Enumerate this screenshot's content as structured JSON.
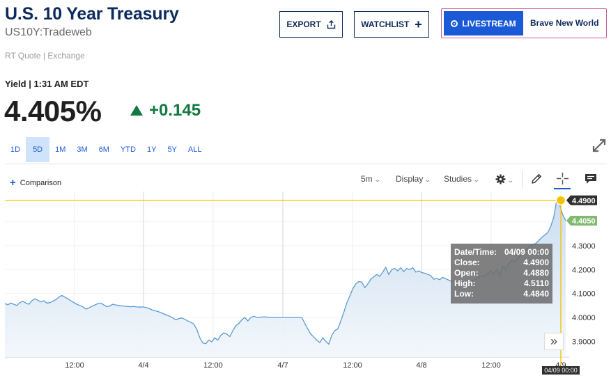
{
  "header": {
    "title": "U.S. 10 Year Treasury",
    "symbol": "US10Y:Tradeweb",
    "quote_source": "RT Quote | Exchange",
    "export_label": "EXPORT",
    "watchlist_label": "WATCHLIST",
    "livestream_label": "LIVESTREAM",
    "livestream_show": "Brave New World"
  },
  "quote": {
    "yield_label": "Yield | 1:31 AM EDT",
    "last": "4.405%",
    "change": "+0.145"
  },
  "ranges": [
    "1D",
    "5D",
    "1M",
    "3M",
    "6M",
    "YTD",
    "1Y",
    "5Y",
    "ALL"
  ],
  "active_range": "5D",
  "toolbar": {
    "comparison_label": "Comparison",
    "interval_label": "5m",
    "display_label": "Display",
    "studies_label": "Studies"
  },
  "tooltip": {
    "datetime_label": "Date/Time:",
    "datetime_value": "04/09 00:00",
    "close_label": "Close:",
    "close_value": "4.4900",
    "open_label": "Open:",
    "open_value": "4.4880",
    "high_label": "High:",
    "high_value": "4.5110",
    "low_label": "Low:",
    "low_value": "4.4840"
  },
  "colors": {
    "brand": "#0c2a5b",
    "accent": "#1a5ad6",
    "up": "#0f7a3f",
    "line": "#5b9bd1",
    "crosshair": "#f5c400"
  },
  "chart_data": {
    "type": "area",
    "x_tick_labels": [
      "12:00",
      "4/4",
      "12:00",
      "4/7",
      "12:00",
      "4/8",
      "12:00",
      "4/9"
    ],
    "y_tick_labels": [
      "4.3000",
      "4.2000",
      "4.1000",
      "4.0000",
      "3.9000"
    ],
    "ylim": [
      3.84,
      4.52
    ],
    "crosshair_value": "4.4900",
    "last_value": "4.4050",
    "crosshair_time": "04/09 00:00",
    "grid": true,
    "series": [
      {
        "values": [
          4.058,
          4.053,
          4.06,
          4.055,
          4.05,
          4.062,
          4.068,
          4.06,
          4.055,
          4.07,
          4.078,
          4.072,
          4.065,
          4.07,
          4.06,
          4.062,
          4.068,
          4.075,
          4.085,
          4.092,
          4.085,
          4.078,
          4.07,
          4.062,
          4.055,
          4.05,
          4.045,
          4.035,
          4.04,
          4.047,
          4.052,
          4.058,
          4.06,
          4.052,
          4.045,
          4.048,
          4.055,
          4.052,
          4.05,
          4.048,
          4.047,
          4.046,
          4.045,
          4.046,
          4.044,
          4.043,
          4.044,
          4.042,
          4.038,
          4.032,
          4.028,
          4.025,
          4.02,
          4.015,
          4.01,
          4.005,
          3.998,
          3.99,
          3.995,
          3.998,
          3.992,
          3.985,
          3.98,
          3.972,
          3.95,
          3.915,
          3.893,
          3.89,
          3.905,
          3.898,
          3.915,
          3.905,
          3.925,
          3.935,
          3.93,
          3.92,
          3.945,
          3.965,
          3.975,
          3.99,
          4.0,
          3.985,
          4.0,
          4.005,
          4.0,
          4.0,
          4.002,
          4.002,
          4.0,
          4.0,
          4.0,
          4.0,
          4.0,
          4.0,
          4.0,
          4.0,
          4.0,
          4.0,
          4.0,
          4.0,
          3.975,
          3.952,
          3.93,
          3.918,
          3.905,
          3.895,
          3.915,
          3.9,
          3.888,
          3.925,
          3.945,
          3.952,
          3.985,
          4.02,
          4.06,
          4.09,
          4.12,
          4.14,
          4.15,
          4.148,
          4.125,
          4.14,
          4.16,
          4.17,
          4.18,
          4.172,
          4.19,
          4.21,
          4.18,
          4.2,
          4.205,
          4.195,
          4.208,
          4.192,
          4.205,
          4.2,
          4.208,
          4.19,
          4.195,
          4.188,
          4.185,
          4.18,
          4.175,
          4.16,
          4.163,
          4.158,
          4.168,
          4.162,
          4.156,
          4.15,
          4.155,
          4.148,
          4.155,
          4.146,
          4.15,
          4.14,
          4.155,
          4.16,
          4.168,
          4.175,
          4.172,
          4.185,
          4.195,
          4.18,
          4.2,
          4.175,
          4.215,
          4.2,
          4.225,
          4.24,
          4.232,
          4.25,
          4.26,
          4.275,
          4.288,
          4.298,
          4.305,
          4.31,
          4.322,
          4.335,
          4.345,
          4.355,
          4.38,
          4.42,
          4.49,
          4.47,
          4.43,
          4.405
        ]
      }
    ]
  }
}
